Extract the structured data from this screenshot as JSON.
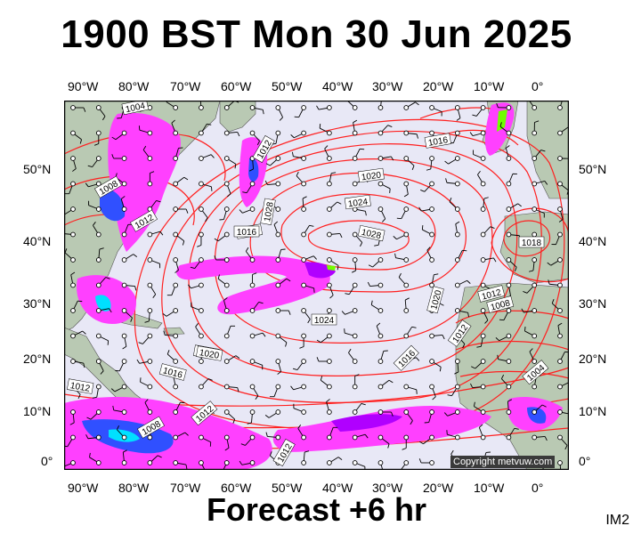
{
  "title": "1900 BST Mon 30 Jun 2025",
  "footer": "Forecast +6 hr",
  "product_code": "IM2",
  "copyright": "Copyright metvuw.com",
  "longitude_labels": [
    "90°W",
    "80°W",
    "70°W",
    "60°W",
    "50°W",
    "40°W",
    "30°W",
    "20°W",
    "10°W",
    "0°"
  ],
  "latitude_labels": [
    "50°N",
    "40°N",
    "30°N",
    "20°N",
    "10°N",
    "0°"
  ],
  "isobar_labels": [
    "1004",
    "1016",
    "1012",
    "1008",
    "1012",
    "1016",
    "1020",
    "1024",
    "1028",
    "1024",
    "1020",
    "1028",
    "1016",
    "1018",
    "1012",
    "1008",
    "1020",
    "1016",
    "1012",
    "1016",
    "1020",
    "1004",
    "1008",
    "1012",
    "1012",
    "1012"
  ],
  "colors": {
    "ocean": "#e8e8f6",
    "land": "#b9c9b3",
    "isobar": "#ff2020",
    "precip_light": "#ff40ff",
    "precip_medium": "#b000ff",
    "precip_heavy": "#3050ff",
    "precip_extreme": "#00e0ff",
    "precip_peak": "#70ff00",
    "wind_barb": "#000000"
  }
}
